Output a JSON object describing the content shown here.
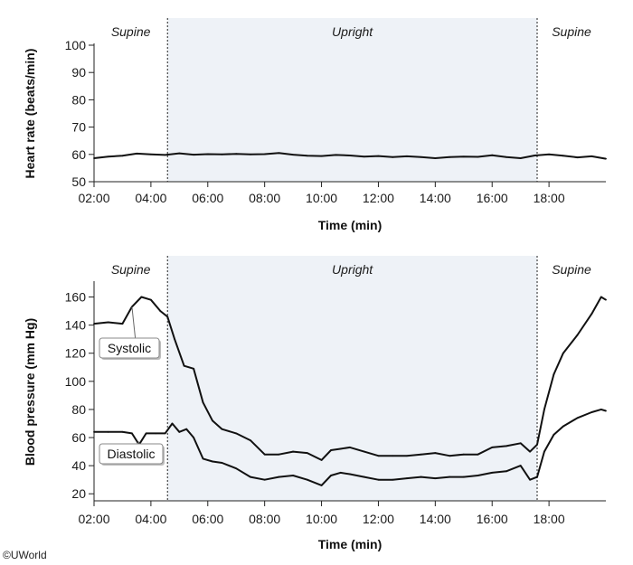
{
  "credit": "©UWorld",
  "chart_data": [
    {
      "type": "line",
      "title": "",
      "xlabel": "Time (min)",
      "ylabel": "Heart rate (beats/min)",
      "xlim": [
        "02:00",
        "20:00"
      ],
      "ylim": [
        50,
        100
      ],
      "x_ticks": [
        "02:00",
        "04:00",
        "06:00",
        "08:00",
        "10:00",
        "12:00",
        "14:00",
        "16:00",
        "18:00"
      ],
      "y_ticks": [
        50,
        60,
        70,
        80,
        90,
        100
      ],
      "phases": [
        {
          "label": "Supine",
          "start": "02:00",
          "end": "04:35",
          "shaded": false
        },
        {
          "label": "Upright",
          "start": "04:35",
          "end": "17:35",
          "shaded": true
        },
        {
          "label": "Supine",
          "start": "17:35",
          "end": "20:00",
          "shaded": false
        }
      ],
      "series": [
        {
          "x": [
            "02:00",
            "02:30",
            "03:00",
            "03:30",
            "04:00",
            "04:30",
            "05:00",
            "05:30",
            "06:00",
            "06:30",
            "07:00",
            "07:30",
            "08:00",
            "08:30",
            "09:00",
            "09:30",
            "10:00",
            "10:30",
            "11:00",
            "11:30",
            "12:00",
            "12:30",
            "13:00",
            "13:30",
            "14:00",
            "14:30",
            "15:00",
            "15:30",
            "16:00",
            "16:30",
            "17:00",
            "17:30",
            "18:00",
            "18:30",
            "19:00",
            "19:30",
            "20:00"
          ],
          "values": [
            58.6,
            59.2,
            59.5,
            60.3,
            60.0,
            59.8,
            60.4,
            59.9,
            60.1,
            60.0,
            60.2,
            60.0,
            60.1,
            60.5,
            59.9,
            59.5,
            59.4,
            59.8,
            59.6,
            59.2,
            59.4,
            59.0,
            59.3,
            59.0,
            58.6,
            59.0,
            59.2,
            59.1,
            59.7,
            59.0,
            58.6,
            59.6,
            60.0,
            59.5,
            58.9,
            59.3,
            58.4
          ]
        }
      ]
    },
    {
      "type": "line",
      "title": "",
      "xlabel": "Time (min)",
      "ylabel": "Blood pressure (mm Hg)",
      "xlim": [
        "02:00",
        "20:00"
      ],
      "ylim": [
        15,
        170
      ],
      "x_ticks": [
        "02:00",
        "04:00",
        "06:00",
        "08:00",
        "10:00",
        "12:00",
        "14:00",
        "16:00",
        "18:00"
      ],
      "y_ticks": [
        20,
        40,
        60,
        80,
        100,
        120,
        140,
        160
      ],
      "phases": [
        {
          "label": "Supine",
          "start": "02:00",
          "end": "04:35",
          "shaded": false
        },
        {
          "label": "Upright",
          "start": "04:35",
          "end": "17:35",
          "shaded": true
        },
        {
          "label": "Supine",
          "start": "17:35",
          "end": "20:00",
          "shaded": false
        }
      ],
      "series": [
        {
          "name": "Systolic",
          "x": [
            "02:00",
            "02:30",
            "03:00",
            "03:20",
            "03:40",
            "04:00",
            "04:20",
            "04:35",
            "04:50",
            "05:10",
            "05:30",
            "05:50",
            "06:10",
            "06:30",
            "07:00",
            "07:30",
            "08:00",
            "08:30",
            "09:00",
            "09:30",
            "10:00",
            "10:20",
            "10:40",
            "11:00",
            "11:30",
            "12:00",
            "12:30",
            "13:00",
            "13:30",
            "14:00",
            "14:30",
            "15:00",
            "15:30",
            "16:00",
            "16:30",
            "17:00",
            "17:20",
            "17:35",
            "17:50",
            "18:10",
            "18:30",
            "19:00",
            "19:30",
            "19:50",
            "20:00"
          ],
          "values": [
            141,
            142,
            141,
            153,
            160,
            158,
            150,
            146,
            130,
            111,
            109,
            85,
            72,
            66,
            63,
            58,
            48,
            48,
            50,
            49,
            44,
            51,
            52,
            53,
            50,
            47,
            47,
            47,
            48,
            49,
            47,
            48,
            48,
            53,
            54,
            56,
            50,
            55,
            80,
            105,
            120,
            133,
            148,
            160,
            158
          ]
        },
        {
          "name": "Diastolic",
          "x": [
            "02:00",
            "02:30",
            "03:00",
            "03:20",
            "03:35",
            "03:50",
            "04:10",
            "04:30",
            "04:45",
            "05:00",
            "05:15",
            "05:30",
            "05:50",
            "06:10",
            "06:30",
            "07:00",
            "07:30",
            "08:00",
            "08:30",
            "09:00",
            "09:30",
            "10:00",
            "10:20",
            "10:40",
            "11:00",
            "11:30",
            "12:00",
            "12:30",
            "13:00",
            "13:30",
            "14:00",
            "14:30",
            "15:00",
            "15:30",
            "16:00",
            "16:30",
            "17:00",
            "17:20",
            "17:35",
            "17:50",
            "18:10",
            "18:30",
            "19:00",
            "19:30",
            "19:50",
            "20:00"
          ],
          "values": [
            64,
            64,
            64,
            63,
            55,
            63,
            63,
            63,
            70,
            64,
            66,
            60,
            45,
            43,
            42,
            38,
            32,
            30,
            32,
            33,
            30,
            26,
            33,
            35,
            34,
            32,
            30,
            30,
            31,
            32,
            31,
            32,
            32,
            33,
            35,
            36,
            40,
            30,
            32,
            50,
            62,
            68,
            74,
            78,
            80,
            79
          ]
        }
      ]
    }
  ]
}
